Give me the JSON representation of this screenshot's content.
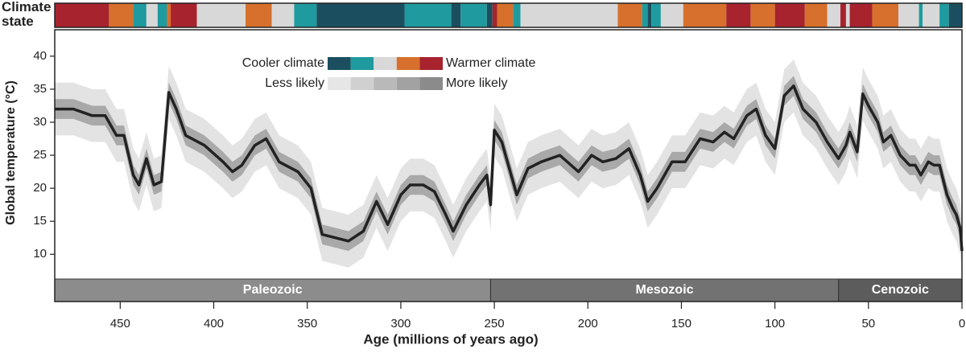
{
  "chart_data": {
    "type": "line",
    "x_label": "Age (millions of years ago)",
    "y_label": "Global temperature (°C)",
    "climate_label": "Climate state",
    "xlim": [
      485,
      0
    ],
    "xticks": [
      450,
      400,
      350,
      300,
      250,
      200,
      150,
      100,
      50,
      0
    ],
    "ylim": [
      6.5,
      44
    ],
    "yticks": [
      10,
      15,
      20,
      25,
      30,
      35,
      40
    ],
    "x": [
      485,
      475,
      465,
      458,
      452,
      448,
      443,
      440,
      436,
      432,
      428,
      424,
      420,
      415,
      405,
      395,
      390,
      385,
      378,
      372,
      365,
      355,
      348,
      342,
      335,
      328,
      320,
      313,
      307,
      300,
      295,
      288,
      282,
      276,
      272,
      265,
      258,
      254,
      252,
      250,
      246,
      242,
      238,
      232,
      225,
      215,
      205,
      198,
      192,
      185,
      178,
      172,
      168,
      163,
      155,
      148,
      140,
      133,
      127,
      122,
      115,
      110,
      105,
      100,
      95,
      90,
      85,
      78,
      72,
      66,
      62,
      60,
      56,
      53,
      50,
      45,
      42,
      38,
      33,
      28,
      25,
      22,
      18,
      15,
      12,
      8,
      5,
      3,
      1,
      0
    ],
    "series": [
      {
        "color": "#222222",
        "values": [
          32,
          32,
          31,
          31,
          28,
          28,
          22,
          20.5,
          24.5,
          20.5,
          21,
          34.5,
          32,
          28,
          26.5,
          24,
          22.5,
          23.5,
          26.5,
          27.5,
          24,
          22.5,
          20,
          13,
          12.5,
          12,
          13.5,
          18,
          14.5,
          19,
          20.5,
          20.5,
          19.5,
          16,
          13.5,
          17.5,
          20.5,
          22,
          17.5,
          28.8,
          27,
          23,
          19,
          23,
          24,
          25,
          22.5,
          25,
          24,
          24.5,
          26,
          22,
          18,
          20,
          24,
          24,
          27.5,
          27,
          28.5,
          27.5,
          31,
          32,
          28,
          26,
          34,
          35.5,
          32,
          30,
          27,
          24.5,
          26.5,
          28.5,
          25.5,
          34.3,
          32.5,
          30,
          27,
          28,
          25,
          23.5,
          23.5,
          22,
          24,
          23.5,
          23.5,
          19,
          17,
          16,
          14,
          10.5
        ]
      }
    ],
    "bands": [
      {
        "color": "#e3e3e3",
        "lower": [
          28,
          28,
          27,
          27,
          24,
          24,
          18,
          16.5,
          20.5,
          16.5,
          17,
          30.5,
          28,
          24,
          22.5,
          20,
          18.5,
          19.5,
          22.5,
          23.5,
          20,
          18.5,
          16,
          9,
          8.5,
          8,
          9.5,
          14,
          10.5,
          15,
          16.5,
          16.5,
          15.5,
          12,
          9.5,
          13.5,
          16.5,
          18,
          13.5,
          24.8,
          23,
          19,
          15,
          19,
          20,
          21,
          18.5,
          21,
          20,
          20.5,
          22,
          18,
          14,
          16,
          20,
          20,
          23.5,
          23,
          24.5,
          23.5,
          27,
          28,
          24,
          22,
          30,
          31.5,
          28,
          26,
          23,
          20.5,
          22.5,
          24.5,
          21.5,
          30.3,
          28.5,
          26,
          23,
          24,
          21,
          19.5,
          19.5,
          18,
          20,
          19.5,
          19.5,
          15,
          13,
          12,
          10,
          7
        ],
        "upper": [
          36,
          36,
          35,
          35,
          32,
          32,
          26,
          24.5,
          28.5,
          24.5,
          25,
          38.5,
          36,
          32,
          30.5,
          28,
          26.5,
          27.5,
          30.5,
          31.5,
          28,
          26.5,
          24,
          17,
          16.5,
          16,
          17.5,
          22,
          18.5,
          23,
          24.5,
          24.5,
          23.5,
          20,
          17.5,
          21.5,
          24.5,
          26,
          21.5,
          32.8,
          31,
          27,
          23,
          27,
          28,
          29,
          26.5,
          29,
          28,
          28.5,
          30,
          26,
          22,
          24,
          28,
          28,
          31.5,
          31,
          32.5,
          31.5,
          35,
          36,
          32,
          30,
          38,
          39.5,
          36,
          34,
          31,
          28.5,
          30.5,
          32.5,
          29.5,
          38.3,
          36.5,
          34,
          31,
          32,
          29,
          27.5,
          27.5,
          26,
          28,
          27.5,
          27.5,
          23,
          21,
          20,
          18,
          14.5
        ]
      },
      {
        "color": "#a9a9a9",
        "lower": [
          30.5,
          30.5,
          29.5,
          29.5,
          26.5,
          26.5,
          20.5,
          19,
          23,
          19,
          19.5,
          33,
          30.5,
          26.5,
          25,
          22.5,
          21,
          22,
          25,
          26,
          22.5,
          21,
          18.5,
          11.5,
          11,
          10.5,
          12,
          16.5,
          13,
          17.5,
          19,
          19,
          18,
          14.5,
          12,
          16,
          19,
          20.5,
          16,
          27.3,
          25.5,
          21.5,
          17.5,
          21.5,
          22.5,
          23.5,
          21,
          23.5,
          22.5,
          23,
          24.5,
          20.5,
          16.5,
          18.5,
          22.5,
          22.5,
          26,
          25.5,
          27,
          26,
          29.5,
          30.5,
          26.5,
          24.5,
          32.5,
          34,
          30.5,
          28.5,
          25.5,
          23,
          25,
          27,
          24,
          32.8,
          31,
          28.5,
          25.5,
          26.5,
          23.5,
          22,
          22,
          20.5,
          22.5,
          22,
          22,
          17.5,
          15.5,
          14.5,
          12.5,
          9
        ],
        "upper": [
          33.5,
          33.5,
          32.5,
          32.5,
          29.5,
          29.5,
          23.5,
          22,
          26,
          22,
          22.5,
          36,
          33.5,
          29.5,
          28,
          25.5,
          24,
          25,
          28,
          29,
          25.5,
          24,
          21.5,
          14.5,
          14,
          13.5,
          15,
          19.5,
          16,
          20.5,
          22,
          22,
          21,
          17.5,
          15,
          19,
          22,
          23.5,
          19,
          30.3,
          28.5,
          24.5,
          20.5,
          24.5,
          25.5,
          26.5,
          24,
          26.5,
          25.5,
          26,
          27.5,
          23.5,
          19.5,
          21.5,
          25.5,
          25.5,
          29,
          28.5,
          30,
          29,
          32.5,
          33.5,
          29.5,
          27.5,
          35.5,
          37,
          33.5,
          31.5,
          28.5,
          26,
          28,
          30,
          27,
          35.8,
          34,
          31.5,
          28.5,
          29.5,
          26.5,
          25,
          25,
          23.5,
          25.5,
          25,
          25,
          20.5,
          18.5,
          17.5,
          15.5,
          12
        ]
      }
    ],
    "legend": {
      "cooler": "Cooler climate",
      "warmer": "Warmer climate",
      "less": "Less likely",
      "more": "More likely",
      "state_colors": [
        "#1b4f5f",
        "#1f9a9e",
        "#d8d8d8",
        "#d6702c",
        "#a7232e"
      ],
      "likelihood_colors": [
        "#e6e6e6",
        "#d0d0d0",
        "#b9b9b9",
        "#a2a2a2",
        "#8b8b8b"
      ]
    },
    "climate_segments": [
      {
        "from": 485,
        "to": 456,
        "state": 4
      },
      {
        "from": 456,
        "to": 443,
        "state": 3
      },
      {
        "from": 443,
        "to": 436,
        "state": 1
      },
      {
        "from": 436,
        "to": 430,
        "state": 2
      },
      {
        "from": 430,
        "to": 425,
        "state": 1
      },
      {
        "from": 425,
        "to": 423,
        "state": 3
      },
      {
        "from": 423,
        "to": 409,
        "state": 4
      },
      {
        "from": 409,
        "to": 383,
        "state": 2
      },
      {
        "from": 383,
        "to": 369,
        "state": 3
      },
      {
        "from": 369,
        "to": 357,
        "state": 2
      },
      {
        "from": 357,
        "to": 345,
        "state": 1
      },
      {
        "from": 345,
        "to": 298,
        "state": 0
      },
      {
        "from": 298,
        "to": 273,
        "state": 1
      },
      {
        "from": 273,
        "to": 268,
        "state": 0
      },
      {
        "from": 268,
        "to": 254,
        "state": 1
      },
      {
        "from": 254,
        "to": 251,
        "state": 0
      },
      {
        "from": 251,
        "to": 248.5,
        "state": 4
      },
      {
        "from": 248.5,
        "to": 240,
        "state": 3
      },
      {
        "from": 240,
        "to": 236,
        "state": 1
      },
      {
        "from": 236,
        "to": 184,
        "state": 2
      },
      {
        "from": 184,
        "to": 171,
        "state": 3
      },
      {
        "from": 171,
        "to": 168,
        "state": 1
      },
      {
        "from": 168,
        "to": 166,
        "state": 0
      },
      {
        "from": 166,
        "to": 161,
        "state": 1
      },
      {
        "from": 161,
        "to": 149,
        "state": 2
      },
      {
        "from": 149,
        "to": 126,
        "state": 3
      },
      {
        "from": 126,
        "to": 113,
        "state": 4
      },
      {
        "from": 113,
        "to": 100,
        "state": 3
      },
      {
        "from": 100,
        "to": 84,
        "state": 4
      },
      {
        "from": 84,
        "to": 72,
        "state": 3
      },
      {
        "from": 72,
        "to": 65,
        "state": 2
      },
      {
        "from": 65,
        "to": 62,
        "state": 4
      },
      {
        "from": 62,
        "to": 60,
        "state": 2
      },
      {
        "from": 60,
        "to": 48,
        "state": 4
      },
      {
        "from": 48,
        "to": 34,
        "state": 3
      },
      {
        "from": 34,
        "to": 23,
        "state": 2
      },
      {
        "from": 23,
        "to": 21,
        "state": 1
      },
      {
        "from": 21,
        "to": 12,
        "state": 2
      },
      {
        "from": 12,
        "to": 7,
        "state": 1
      },
      {
        "from": 7,
        "to": 0,
        "state": 0
      }
    ],
    "eras": [
      {
        "name": "Paleozoic",
        "from": 485,
        "to": 252,
        "color": "#8c8c8c"
      },
      {
        "name": "Mesozoic",
        "from": 252,
        "to": 66,
        "color": "#727272"
      },
      {
        "name": "Cenozoic",
        "from": 66,
        "to": 0,
        "color": "#5c5c5c"
      }
    ]
  }
}
